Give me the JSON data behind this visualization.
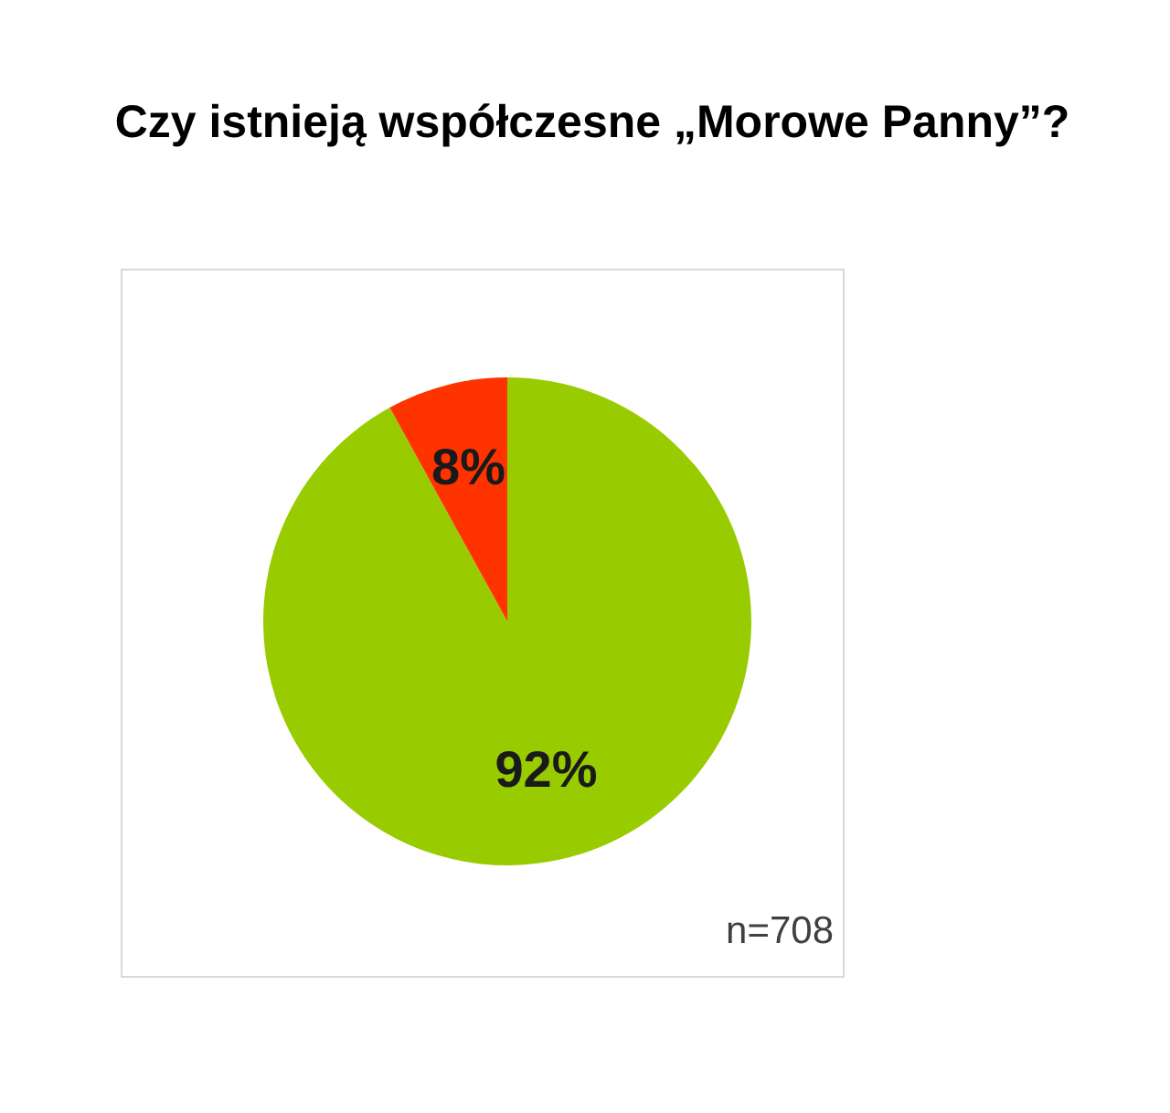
{
  "chart_data": {
    "type": "pie",
    "title": "Czy istnieją współczesne „Morowe Panny”?",
    "categories": [
      null,
      null
    ],
    "values": [
      92,
      8
    ],
    "colors": [
      "#99cc00",
      "#ff3300"
    ],
    "value_labels": [
      "92%",
      "8%"
    ],
    "annotations": [
      "n=708"
    ],
    "legend": false
  }
}
